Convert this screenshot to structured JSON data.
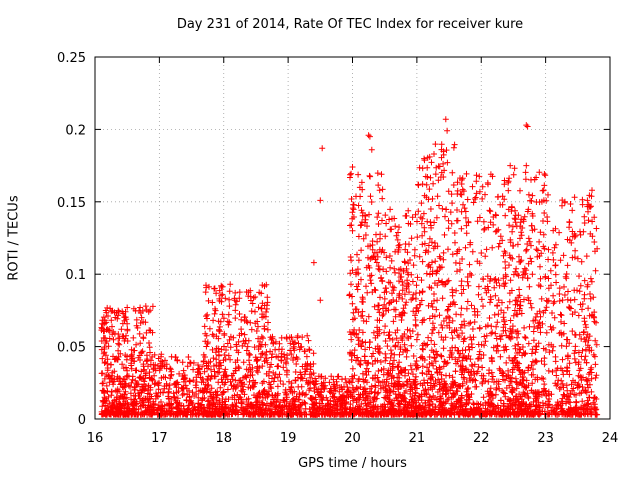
{
  "chart_data": {
    "type": "scatter",
    "title": "Day 231 of 2014, Rate Of TEC Index for receiver kure",
    "xlabel": "GPS time / hours",
    "ylabel": "ROTI / TECUs",
    "xlim": [
      16,
      24
    ],
    "ylim": [
      0,
      0.25
    ],
    "xticks": [
      "16",
      "17",
      "18",
      "19",
      "20",
      "21",
      "22",
      "23",
      "24"
    ],
    "yticks": [
      "0",
      "0.05",
      "0.1",
      "0.15",
      "0.2",
      "0.25"
    ],
    "grid": true,
    "marker": "+",
    "color": "#ff0000",
    "series": [
      {
        "name": "ROTI",
        "clusters": [
          {
            "x0": 16.1,
            "x1": 16.9,
            "ylo": 0.003,
            "yhi": 0.078,
            "n": 520
          },
          {
            "x0": 16.9,
            "x1": 17.7,
            "ylo": 0.003,
            "yhi": 0.045,
            "n": 300
          },
          {
            "x0": 17.7,
            "x1": 18.7,
            "ylo": 0.003,
            "yhi": 0.093,
            "n": 560
          },
          {
            "x0": 18.7,
            "x1": 19.4,
            "ylo": 0.003,
            "yhi": 0.058,
            "n": 320
          },
          {
            "x0": 19.4,
            "x1": 19.95,
            "ylo": 0.003,
            "yhi": 0.03,
            "n": 220
          },
          {
            "x0": 19.95,
            "x1": 20.5,
            "ylo": 0.003,
            "yhi": 0.17,
            "n": 420
          },
          {
            "x0": 20.5,
            "x1": 21.0,
            "ylo": 0.003,
            "yhi": 0.145,
            "n": 420
          },
          {
            "x0": 21.0,
            "x1": 21.6,
            "ylo": 0.003,
            "yhi": 0.19,
            "n": 460
          },
          {
            "x0": 21.6,
            "x1": 22.4,
            "ylo": 0.003,
            "yhi": 0.17,
            "n": 520
          },
          {
            "x0": 22.4,
            "x1": 23.0,
            "ylo": 0.003,
            "yhi": 0.175,
            "n": 460
          },
          {
            "x0": 23.0,
            "x1": 23.8,
            "ylo": 0.003,
            "yhi": 0.155,
            "n": 420
          }
        ],
        "highlights": [
          [
            16.15,
            0.066
          ],
          [
            16.5,
            0.077
          ],
          [
            16.7,
            0.077
          ],
          [
            17.85,
            0.09
          ],
          [
            18.1,
            0.093
          ],
          [
            18.6,
            0.08
          ],
          [
            19.4,
            0.108
          ],
          [
            19.5,
            0.082
          ],
          [
            19.5,
            0.151
          ],
          [
            19.53,
            0.187
          ],
          [
            20.0,
            0.174
          ],
          [
            20.25,
            0.196
          ],
          [
            20.27,
            0.195
          ],
          [
            20.3,
            0.186
          ],
          [
            20.45,
            0.169
          ],
          [
            21.2,
            0.181
          ],
          [
            21.45,
            0.207
          ],
          [
            21.47,
            0.199
          ],
          [
            21.55,
            0.17
          ],
          [
            21.8,
            0.092
          ],
          [
            22.15,
            0.169
          ],
          [
            22.45,
            0.175
          ],
          [
            22.7,
            0.203
          ],
          [
            22.72,
            0.202
          ],
          [
            22.7,
            0.175
          ],
          [
            23.3,
            0.15
          ],
          [
            23.72,
            0.158
          ],
          [
            23.7,
            0.083
          ],
          [
            23.6,
            0.083
          ],
          [
            20.0,
            0.13
          ]
        ]
      }
    ]
  }
}
